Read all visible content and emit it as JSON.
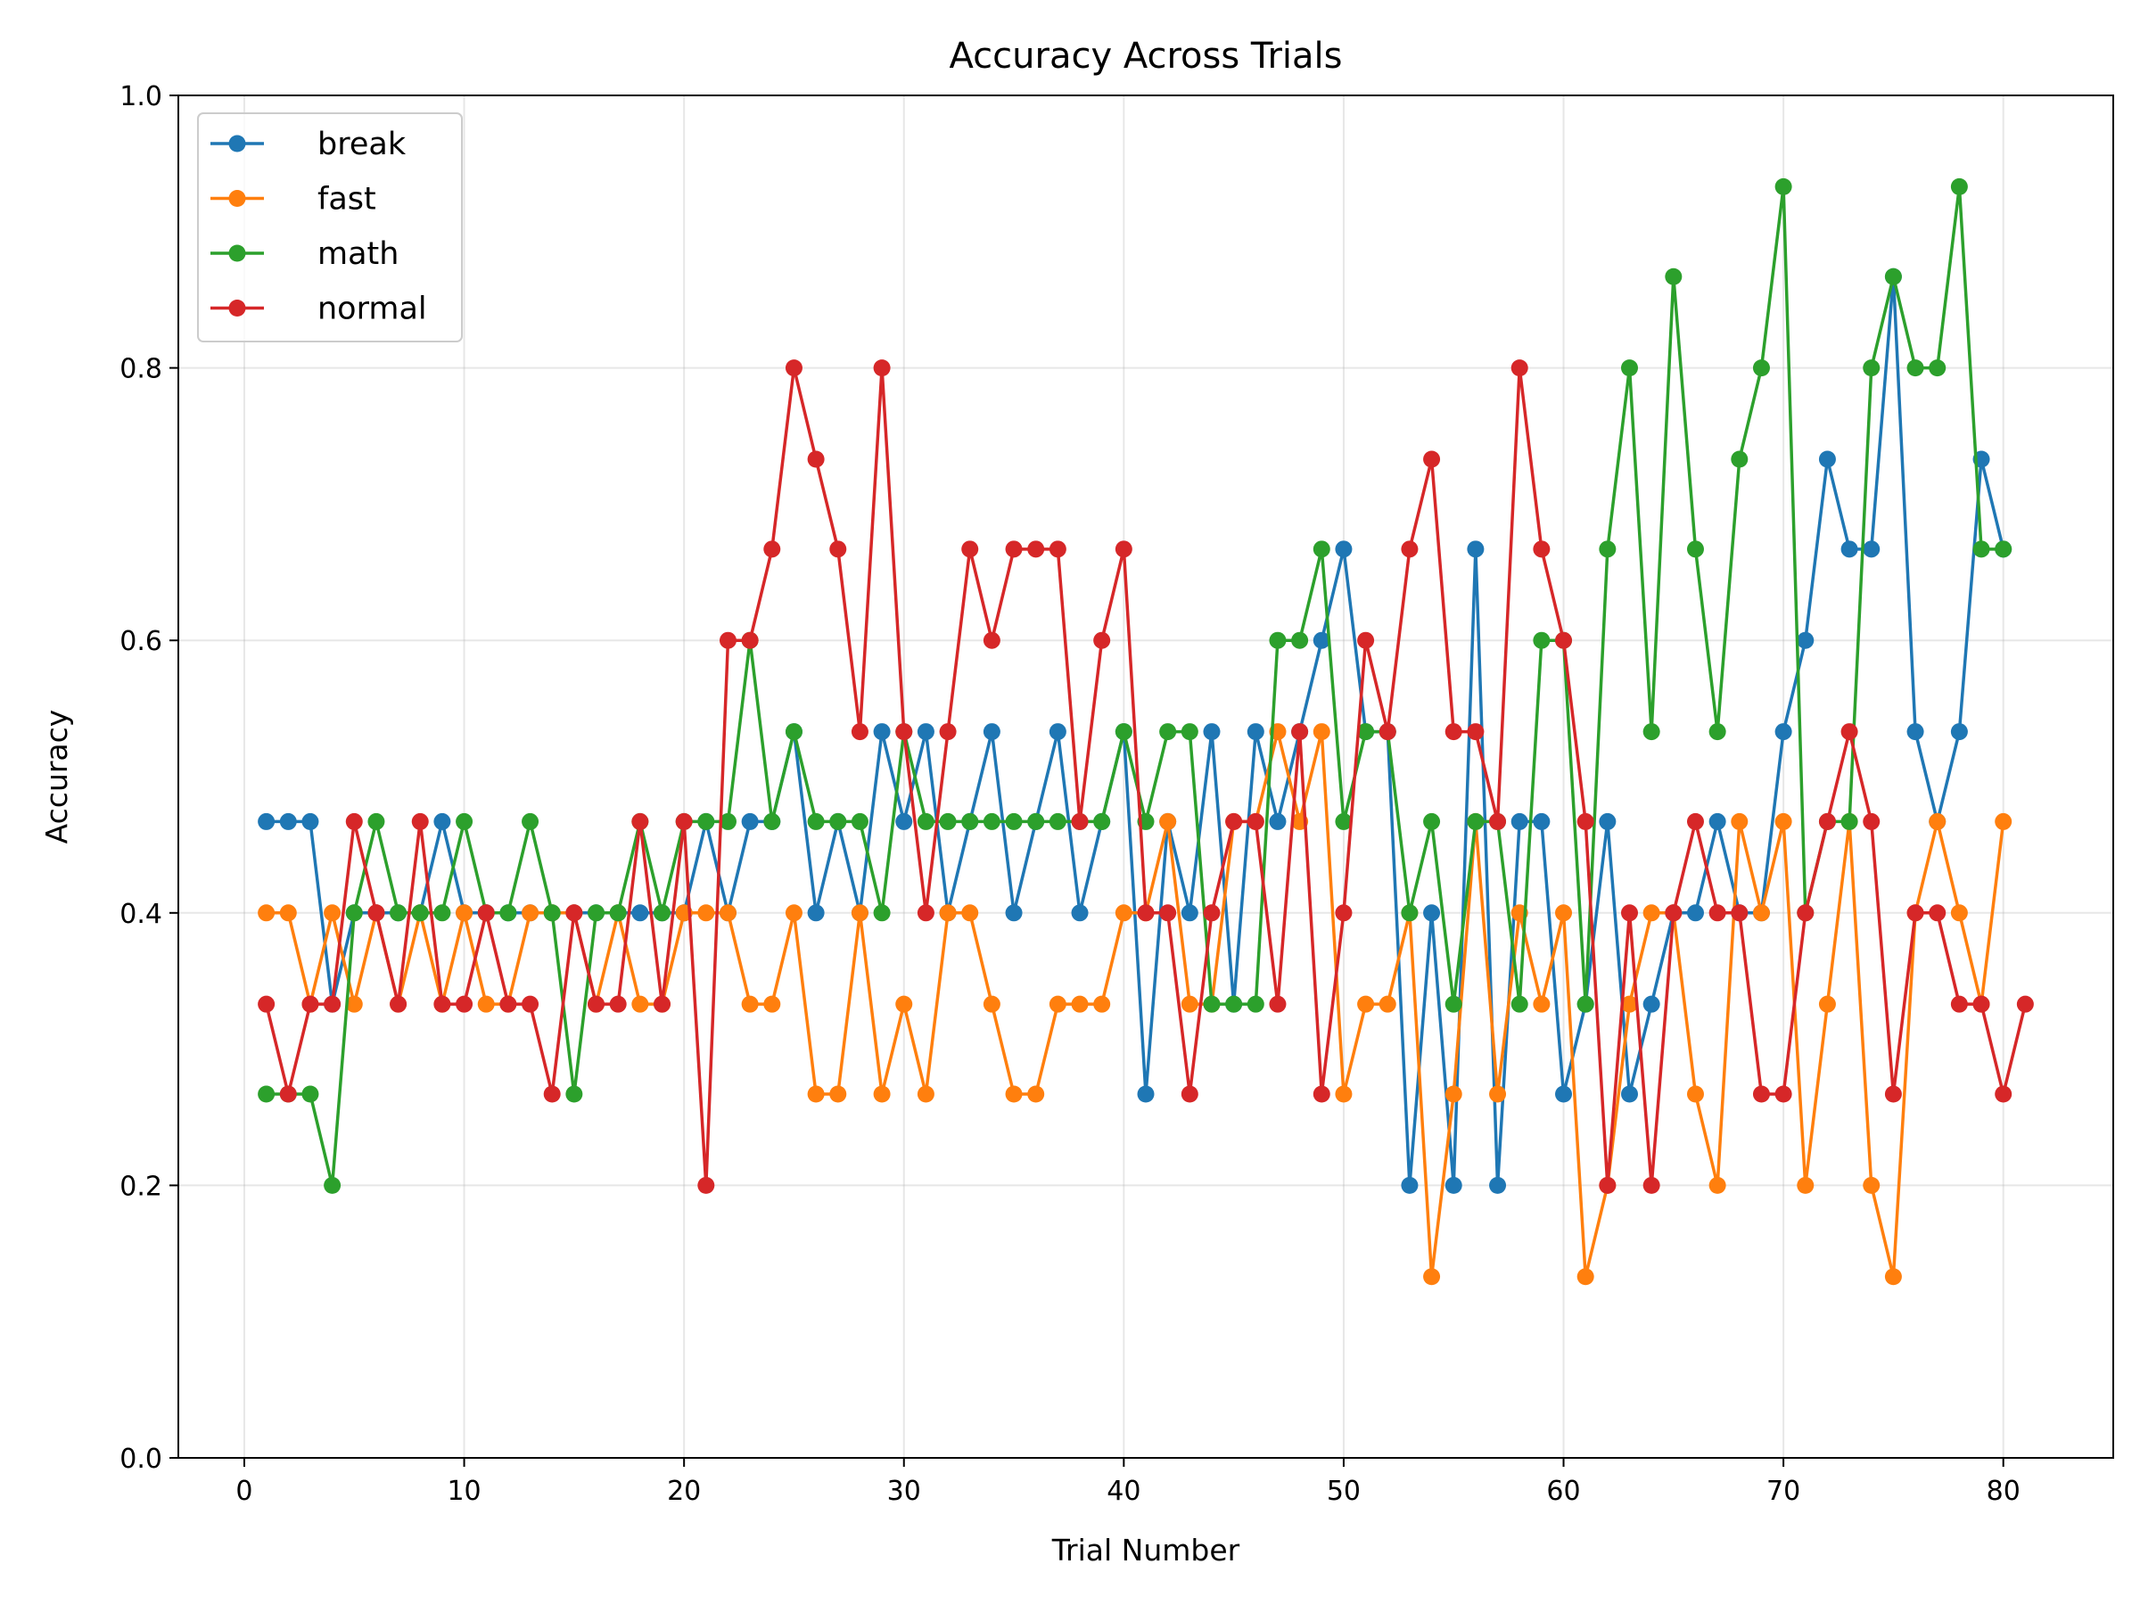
{
  "chart_data": {
    "type": "line",
    "title": "Accuracy Across Trials",
    "xlabel": "Trial Number",
    "ylabel": "Accuracy",
    "xlim": [
      -3,
      85
    ],
    "ylim": [
      0,
      1
    ],
    "xticks": [
      "0",
      "10",
      "20",
      "30",
      "40",
      "50",
      "60",
      "70",
      "80"
    ],
    "yticks": [
      "0.0",
      "0.2",
      "0.4",
      "0.6",
      "0.8",
      "1.0"
    ],
    "grid": true,
    "legend_position": "top-left",
    "series": [
      {
        "name": "break",
        "color": "#1f77b4",
        "x": [
          1,
          2,
          3,
          4,
          5,
          6,
          7,
          8,
          9,
          10,
          11,
          12,
          13,
          14,
          15,
          16,
          17,
          18,
          19,
          20,
          21,
          22,
          23,
          24,
          25,
          26,
          27,
          28,
          29,
          30,
          31,
          32,
          33,
          34,
          35,
          36,
          37,
          38,
          39,
          40,
          41,
          42,
          43,
          44,
          45,
          46,
          47,
          48,
          49,
          50,
          51,
          52,
          53,
          54,
          55,
          56,
          57,
          58,
          59,
          60,
          61,
          62,
          63,
          64,
          65,
          66,
          67,
          68,
          69,
          70,
          71,
          72,
          73,
          74,
          75,
          76,
          77,
          78,
          79,
          80
        ],
        "y": [
          0.467,
          0.467,
          0.467,
          0.333,
          0.4,
          0.4,
          0.4,
          0.4,
          0.467,
          0.4,
          0.4,
          0.4,
          0.4,
          0.4,
          0.4,
          0.4,
          0.4,
          0.4,
          0.4,
          0.4,
          0.467,
          0.4,
          0.467,
          0.467,
          0.533,
          0.4,
          0.467,
          0.4,
          0.533,
          0.467,
          0.533,
          0.4,
          0.467,
          0.533,
          0.4,
          0.467,
          0.533,
          0.4,
          0.467,
          0.533,
          0.267,
          0.467,
          0.4,
          0.533,
          0.333,
          0.533,
          0.467,
          0.533,
          0.6,
          0.667,
          0.533,
          0.533,
          0.2,
          0.4,
          0.2,
          0.667,
          0.2,
          0.467,
          0.467,
          0.267,
          0.333,
          0.467,
          0.267,
          0.333,
          0.4,
          0.4,
          0.467,
          0.4,
          0.4,
          0.533,
          0.6,
          0.733,
          0.667,
          0.667,
          0.867,
          0.533,
          0.467,
          0.533,
          0.733,
          0.667
        ]
      },
      {
        "name": "fast",
        "color": "#ff7f0e",
        "x": [
          1,
          2,
          3,
          4,
          5,
          6,
          7,
          8,
          9,
          10,
          11,
          12,
          13,
          14,
          15,
          16,
          17,
          18,
          19,
          20,
          21,
          22,
          23,
          24,
          25,
          26,
          27,
          28,
          29,
          30,
          31,
          32,
          33,
          34,
          35,
          36,
          37,
          38,
          39,
          40,
          41,
          42,
          43,
          44,
          45,
          46,
          47,
          48,
          49,
          50,
          51,
          52,
          53,
          54,
          55,
          56,
          57,
          58,
          59,
          60,
          61,
          62,
          63,
          64,
          65,
          66,
          67,
          68,
          69,
          70,
          71,
          72,
          73,
          74,
          75,
          76,
          77,
          78,
          79,
          80
        ],
        "y": [
          0.4,
          0.4,
          0.333,
          0.4,
          0.333,
          0.4,
          0.333,
          0.4,
          0.333,
          0.4,
          0.333,
          0.333,
          0.4,
          0.4,
          0.4,
          0.333,
          0.4,
          0.333,
          0.333,
          0.4,
          0.4,
          0.4,
          0.333,
          0.333,
          0.4,
          0.267,
          0.267,
          0.4,
          0.267,
          0.333,
          0.267,
          0.4,
          0.4,
          0.333,
          0.267,
          0.267,
          0.333,
          0.333,
          0.333,
          0.4,
          0.4,
          0.467,
          0.333,
          0.333,
          0.467,
          0.467,
          0.533,
          0.467,
          0.533,
          0.267,
          0.333,
          0.333,
          0.4,
          0.133,
          0.267,
          0.467,
          0.267,
          0.4,
          0.333,
          0.4,
          0.133,
          0.2,
          0.333,
          0.4,
          0.4,
          0.267,
          0.2,
          0.467,
          0.4,
          0.467,
          0.2,
          0.333,
          0.467,
          0.2,
          0.133,
          0.4,
          0.467,
          0.4,
          0.333,
          0.467
        ]
      },
      {
        "name": "math",
        "color": "#2ca02c",
        "x": [
          1,
          2,
          3,
          4,
          5,
          6,
          7,
          8,
          9,
          10,
          11,
          12,
          13,
          14,
          15,
          16,
          17,
          18,
          19,
          20,
          21,
          22,
          23,
          24,
          25,
          26,
          27,
          28,
          29,
          30,
          31,
          32,
          33,
          34,
          35,
          36,
          37,
          38,
          39,
          40,
          41,
          42,
          43,
          44,
          45,
          46,
          47,
          48,
          49,
          50,
          51,
          52,
          53,
          54,
          55,
          56,
          57,
          58,
          59,
          60,
          61,
          62,
          63,
          64,
          65,
          66,
          67,
          68,
          69,
          70,
          71,
          72,
          73,
          74,
          75,
          76,
          77,
          78,
          79,
          80
        ],
        "y": [
          0.267,
          0.267,
          0.267,
          0.2,
          0.4,
          0.467,
          0.4,
          0.4,
          0.4,
          0.467,
          0.4,
          0.4,
          0.467,
          0.4,
          0.267,
          0.4,
          0.4,
          0.467,
          0.4,
          0.467,
          0.467,
          0.467,
          0.6,
          0.467,
          0.533,
          0.467,
          0.467,
          0.467,
          0.4,
          0.533,
          0.467,
          0.467,
          0.467,
          0.467,
          0.467,
          0.467,
          0.467,
          0.467,
          0.467,
          0.533,
          0.467,
          0.533,
          0.533,
          0.333,
          0.333,
          0.333,
          0.6,
          0.6,
          0.667,
          0.467,
          0.533,
          0.533,
          0.4,
          0.467,
          0.333,
          0.467,
          0.467,
          0.333,
          0.6,
          0.6,
          0.333,
          0.667,
          0.8,
          0.533,
          0.867,
          0.667,
          0.533,
          0.733,
          0.8,
          0.933,
          0.4,
          0.467,
          0.467,
          0.8,
          0.867,
          0.8,
          0.8,
          0.933,
          0.667,
          0.667
        ]
      },
      {
        "name": "normal",
        "color": "#d62728",
        "x": [
          1,
          2,
          3,
          4,
          5,
          6,
          7,
          8,
          9,
          10,
          11,
          12,
          13,
          14,
          15,
          16,
          17,
          18,
          19,
          20,
          21,
          22,
          23,
          24,
          25,
          26,
          27,
          28,
          29,
          30,
          31,
          32,
          33,
          34,
          35,
          36,
          37,
          38,
          39,
          40,
          41,
          42,
          43,
          44,
          45,
          46,
          47,
          48,
          49,
          50,
          51,
          52,
          53,
          54,
          55,
          56,
          57,
          58,
          59,
          60,
          61,
          62,
          63,
          64,
          65,
          66,
          67,
          68,
          69,
          70,
          71,
          72,
          73,
          74,
          75,
          76,
          77,
          78,
          79,
          80,
          81
        ],
        "y": [
          0.333,
          0.267,
          0.333,
          0.333,
          0.467,
          0.4,
          0.333,
          0.467,
          0.333,
          0.333,
          0.4,
          0.333,
          0.333,
          0.267,
          0.4,
          0.333,
          0.333,
          0.467,
          0.333,
          0.467,
          0.2,
          0.6,
          0.6,
          0.667,
          0.8,
          0.733,
          0.667,
          0.533,
          0.8,
          0.533,
          0.4,
          0.533,
          0.667,
          0.6,
          0.667,
          0.667,
          0.667,
          0.467,
          0.6,
          0.667,
          0.4,
          0.4,
          0.267,
          0.4,
          0.467,
          0.467,
          0.333,
          0.533,
          0.267,
          0.4,
          0.6,
          0.533,
          0.667,
          0.733,
          0.533,
          0.533,
          0.467,
          0.8,
          0.667,
          0.6,
          0.467,
          0.2,
          0.4,
          0.2,
          0.4,
          0.467,
          0.4,
          0.4,
          0.267,
          0.267,
          0.4,
          0.467,
          0.533,
          0.467,
          0.267,
          0.4,
          0.4,
          0.333,
          0.333,
          0.267,
          0.333
        ]
      }
    ]
  }
}
